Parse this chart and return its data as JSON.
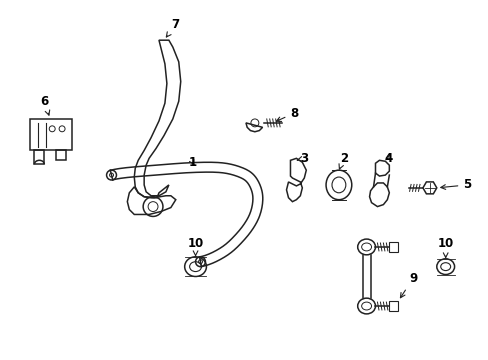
{
  "background_color": "#ffffff",
  "line_color": "#222222",
  "text_color": "#000000",
  "fig_width": 4.89,
  "fig_height": 3.6,
  "dpi": 100
}
